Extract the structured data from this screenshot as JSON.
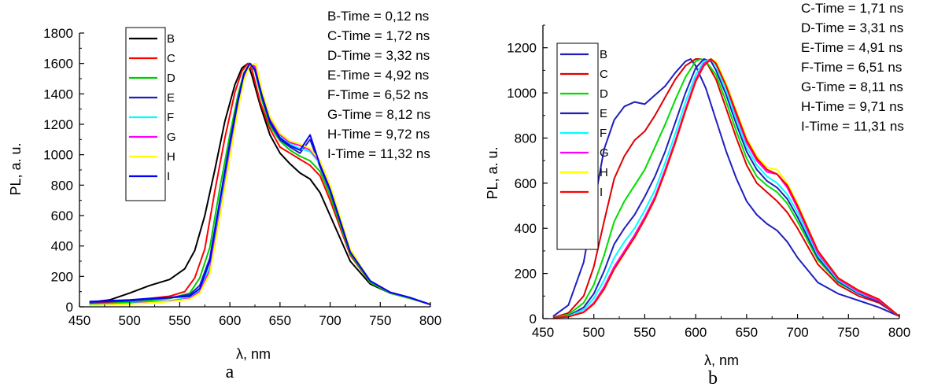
{
  "chart_data": [
    {
      "type": "line",
      "panel_label": "a",
      "xlabel": "λ, nm",
      "ylabel": "PL, a. u.",
      "xlim": [
        450,
        800
      ],
      "ylim": [
        0,
        1800
      ],
      "xticks": [
        450,
        500,
        550,
        600,
        650,
        700,
        750,
        800
      ],
      "yticks": [
        0,
        200,
        400,
        600,
        800,
        1000,
        1200,
        1400,
        1600,
        1800
      ],
      "legend_position": "top-left",
      "annotations": [
        "B-Time = 0,12 ns",
        "C-Time = 1,72 ns",
        "D-Time = 3,32 ns",
        "E-Time = 4,92 ns",
        "F-Time = 6,52 ns",
        "G-Time = 8,12 ns",
        "H-Time = 9,72 ns",
        "I-Time = 11,32 ns"
      ],
      "series": [
        {
          "name": "B",
          "color": "#000000",
          "x": [
            460,
            480,
            500,
            520,
            540,
            555,
            565,
            575,
            585,
            595,
            605,
            612,
            618,
            622,
            630,
            640,
            650,
            660,
            670,
            680,
            690,
            700,
            720,
            740,
            760,
            780,
            800
          ],
          "y": [
            30,
            45,
            90,
            140,
            180,
            250,
            370,
            600,
            900,
            1220,
            1460,
            1570,
            1600,
            1520,
            1330,
            1130,
            1010,
            940,
            880,
            840,
            750,
            600,
            300,
            150,
            90,
            60,
            15
          ]
        },
        {
          "name": "C",
          "color": "#ff0000",
          "x": [
            460,
            480,
            500,
            520,
            540,
            555,
            565,
            575,
            585,
            595,
            605,
            612,
            618,
            622,
            630,
            640,
            650,
            660,
            670,
            680,
            690,
            700,
            720,
            740,
            760,
            780,
            800
          ],
          "y": [
            20,
            28,
            40,
            55,
            70,
            100,
            190,
            380,
            760,
            1110,
            1410,
            1550,
            1600,
            1560,
            1350,
            1170,
            1050,
            1010,
            970,
            930,
            860,
            700,
            340,
            160,
            90,
            55,
            15
          ]
        },
        {
          "name": "D",
          "color": "#00cc00",
          "x": [
            460,
            480,
            500,
            520,
            540,
            560,
            570,
            580,
            590,
            600,
            608,
            614,
            620,
            625,
            632,
            640,
            650,
            660,
            670,
            680,
            690,
            700,
            720,
            740,
            760,
            780,
            800
          ],
          "y": [
            15,
            22,
            30,
            40,
            55,
            90,
            190,
            390,
            780,
            1130,
            1390,
            1540,
            1600,
            1550,
            1360,
            1190,
            1090,
            1030,
            990,
            960,
            890,
            730,
            350,
            160,
            90,
            55,
            15
          ]
        },
        {
          "name": "E",
          "color": "#1f1fbf",
          "x": [
            460,
            480,
            500,
            520,
            540,
            560,
            570,
            580,
            590,
            600,
            608,
            614,
            620,
            625,
            632,
            640,
            650,
            660,
            670,
            680,
            690,
            700,
            720,
            740,
            760,
            780,
            800
          ],
          "y": [
            30,
            35,
            40,
            50,
            60,
            80,
            140,
            320,
            700,
            1080,
            1360,
            1530,
            1600,
            1560,
            1380,
            1210,
            1100,
            1050,
            1010,
            1100,
            920,
            760,
            360,
            170,
            95,
            60,
            15
          ]
        },
        {
          "name": "F",
          "color": "#00ffff",
          "x": [
            460,
            480,
            500,
            520,
            540,
            560,
            570,
            580,
            590,
            600,
            608,
            614,
            620,
            625,
            632,
            640,
            650,
            660,
            670,
            680,
            690,
            700,
            720,
            740,
            760,
            780,
            800
          ],
          "y": [
            12,
            16,
            22,
            30,
            40,
            60,
            110,
            260,
            640,
            1030,
            1320,
            1510,
            1600,
            1570,
            1400,
            1230,
            1120,
            1070,
            1040,
            1020,
            940,
            780,
            370,
            170,
            95,
            60,
            15
          ]
        },
        {
          "name": "G",
          "color": "#ff00ff",
          "x": [
            460,
            480,
            500,
            520,
            540,
            560,
            570,
            580,
            590,
            600,
            608,
            614,
            620,
            625,
            632,
            640,
            650,
            660,
            670,
            680,
            690,
            700,
            720,
            740,
            760,
            780,
            800
          ],
          "y": [
            10,
            14,
            20,
            28,
            38,
            55,
            100,
            240,
            610,
            1000,
            1300,
            1500,
            1600,
            1580,
            1410,
            1240,
            1130,
            1080,
            1060,
            1030,
            950,
            790,
            370,
            170,
            95,
            60,
            15
          ]
        },
        {
          "name": "H",
          "color": "#ffff00",
          "x": [
            460,
            480,
            500,
            520,
            540,
            560,
            570,
            580,
            590,
            600,
            608,
            614,
            620,
            626,
            632,
            640,
            650,
            660,
            670,
            680,
            690,
            700,
            720,
            740,
            760,
            780,
            800
          ],
          "y": [
            10,
            13,
            18,
            26,
            35,
            50,
            90,
            220,
            590,
            980,
            1290,
            1490,
            1590,
            1600,
            1420,
            1250,
            1140,
            1090,
            1070,
            1040,
            960,
            800,
            380,
            170,
            95,
            60,
            15
          ]
        },
        {
          "name": "I",
          "color": "#0000ff",
          "x": [
            460,
            480,
            500,
            520,
            540,
            560,
            570,
            580,
            590,
            600,
            608,
            614,
            620,
            625,
            632,
            640,
            650,
            660,
            670,
            680,
            690,
            700,
            720,
            740,
            760,
            780,
            800
          ],
          "y": [
            35,
            40,
            45,
            55,
            60,
            70,
            120,
            300,
            690,
            1070,
            1350,
            1530,
            1600,
            1560,
            1390,
            1220,
            1110,
            1060,
            1030,
            1130,
            930,
            770,
            360,
            170,
            95,
            60,
            15
          ]
        }
      ]
    },
    {
      "type": "line",
      "panel_label": "b",
      "xlabel": "λ, nm",
      "ylabel": "PL, a. u.",
      "xlim": [
        450,
        800
      ],
      "ylim": [
        0,
        1300
      ],
      "xticks": [
        450,
        500,
        550,
        600,
        650,
        700,
        750,
        800
      ],
      "yticks": [
        0,
        200,
        400,
        600,
        800,
        1000,
        1200
      ],
      "legend_position": "top-left",
      "annotations": [
        "C-Time = 1,71 ns",
        "D-Time = 3,31 ns",
        "E-Time = 4,91 ns",
        "F-Time = 6,51 ns",
        "G-Time = 8,11 ns",
        "H-Time = 9,71 ns",
        "I-Time = 11,31 ns"
      ],
      "series": [
        {
          "name": "B",
          "color": "#1f1fbf",
          "x": [
            460,
            475,
            490,
            500,
            510,
            520,
            530,
            540,
            550,
            560,
            570,
            580,
            590,
            595,
            600,
            610,
            620,
            630,
            640,
            650,
            660,
            670,
            680,
            690,
            700,
            720,
            740,
            760,
            780,
            800
          ],
          "y": [
            10,
            60,
            250,
            500,
            750,
            880,
            940,
            960,
            950,
            990,
            1030,
            1090,
            1140,
            1150,
            1120,
            1020,
            880,
            740,
            620,
            520,
            460,
            420,
            390,
            340,
            270,
            160,
            110,
            80,
            50,
            10
          ]
        },
        {
          "name": "C",
          "color": "#e00000",
          "x": [
            460,
            475,
            490,
            500,
            510,
            520,
            530,
            540,
            550,
            560,
            570,
            580,
            590,
            600,
            605,
            610,
            620,
            630,
            640,
            650,
            660,
            670,
            680,
            690,
            700,
            720,
            740,
            760,
            780,
            800
          ],
          "y": [
            5,
            25,
            100,
            230,
            430,
            620,
            720,
            790,
            830,
            900,
            980,
            1060,
            1120,
            1150,
            1150,
            1140,
            1060,
            930,
            800,
            680,
            600,
            560,
            520,
            470,
            400,
            240,
            150,
            100,
            70,
            10
          ]
        },
        {
          "name": "D",
          "color": "#00dd00",
          "x": [
            460,
            475,
            490,
            500,
            510,
            520,
            530,
            540,
            550,
            560,
            570,
            580,
            590,
            600,
            605,
            610,
            620,
            630,
            640,
            650,
            660,
            670,
            680,
            690,
            700,
            720,
            740,
            760,
            780,
            800
          ],
          "y": [
            5,
            18,
            70,
            150,
            280,
            430,
            520,
            590,
            660,
            760,
            860,
            970,
            1070,
            1140,
            1150,
            1140,
            1080,
            960,
            830,
            710,
            630,
            590,
            560,
            510,
            430,
            260,
            160,
            110,
            75,
            10
          ]
        },
        {
          "name": "E",
          "color": "#1f1fbf",
          "x": [
            460,
            475,
            490,
            500,
            510,
            520,
            530,
            540,
            550,
            560,
            570,
            580,
            590,
            600,
            608,
            615,
            620,
            630,
            640,
            650,
            660,
            670,
            680,
            690,
            700,
            720,
            740,
            760,
            780,
            800
          ],
          "y": [
            5,
            12,
            50,
            110,
            210,
            330,
            400,
            460,
            540,
            630,
            740,
            870,
            1000,
            1110,
            1150,
            1140,
            1100,
            990,
            860,
            740,
            660,
            610,
            580,
            530,
            450,
            270,
            165,
            110,
            75,
            10
          ]
        },
        {
          "name": "F",
          "color": "#00ffff",
          "x": [
            460,
            475,
            490,
            500,
            510,
            520,
            530,
            540,
            550,
            560,
            570,
            580,
            590,
            600,
            608,
            615,
            620,
            630,
            640,
            650,
            660,
            670,
            680,
            690,
            700,
            720,
            740,
            760,
            780,
            800
          ],
          "y": [
            5,
            10,
            40,
            90,
            170,
            270,
            340,
            400,
            480,
            570,
            690,
            820,
            960,
            1080,
            1140,
            1150,
            1120,
            1010,
            880,
            760,
            680,
            630,
            600,
            550,
            470,
            280,
            170,
            115,
            80,
            10
          ]
        },
        {
          "name": "G",
          "color": "#ff00ff",
          "x": [
            460,
            475,
            490,
            500,
            510,
            520,
            530,
            540,
            550,
            560,
            570,
            580,
            590,
            600,
            608,
            615,
            620,
            630,
            640,
            650,
            660,
            670,
            680,
            690,
            700,
            720,
            740,
            760,
            780,
            800
          ],
          "y": [
            5,
            8,
            30,
            70,
            140,
            230,
            300,
            370,
            450,
            540,
            660,
            790,
            930,
            1060,
            1130,
            1150,
            1130,
            1030,
            900,
            780,
            700,
            650,
            640,
            580,
            490,
            290,
            175,
            120,
            80,
            10
          ]
        },
        {
          "name": "H",
          "color": "#ffff00",
          "x": [
            460,
            475,
            490,
            500,
            510,
            520,
            530,
            540,
            550,
            560,
            570,
            580,
            590,
            600,
            608,
            615,
            620,
            630,
            640,
            650,
            660,
            670,
            680,
            690,
            700,
            720,
            740,
            760,
            780,
            800
          ],
          "y": [
            5,
            8,
            28,
            65,
            130,
            220,
            290,
            360,
            440,
            530,
            650,
            780,
            920,
            1050,
            1120,
            1150,
            1140,
            1040,
            920,
            800,
            720,
            670,
            660,
            600,
            510,
            300,
            180,
            125,
            85,
            10
          ]
        },
        {
          "name": "I",
          "color": "#ff0000",
          "x": [
            460,
            475,
            490,
            500,
            510,
            520,
            530,
            540,
            550,
            560,
            570,
            580,
            590,
            600,
            608,
            615,
            620,
            630,
            640,
            650,
            660,
            670,
            680,
            690,
            700,
            720,
            740,
            760,
            780,
            800
          ],
          "y": [
            5,
            8,
            28,
            65,
            130,
            220,
            290,
            360,
            440,
            530,
            650,
            780,
            920,
            1050,
            1120,
            1150,
            1130,
            1030,
            910,
            790,
            710,
            660,
            640,
            590,
            500,
            300,
            180,
            125,
            85,
            10
          ]
        }
      ]
    }
  ]
}
